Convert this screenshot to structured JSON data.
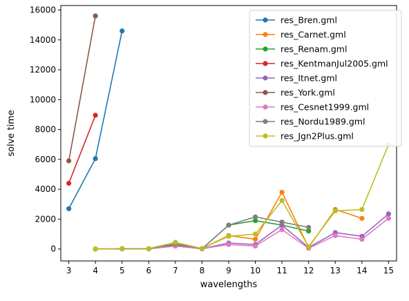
{
  "chart_data": {
    "type": "line",
    "xlabel": "wavelengths",
    "ylabel": "solve time",
    "xlim": [
      2.7,
      15.3
    ],
    "ylim": [
      -800,
      16300
    ],
    "xticks": [
      3,
      4,
      5,
      6,
      7,
      8,
      9,
      10,
      11,
      12,
      13,
      14,
      15
    ],
    "yticks": [
      0,
      2000,
      4000,
      6000,
      8000,
      10000,
      12000,
      14000,
      16000
    ],
    "grid": false,
    "legend_position": "top-right",
    "series": [
      {
        "name": "res_Bren.gml",
        "color": "#1f77b4",
        "x": [
          3,
          4,
          5
        ],
        "y": [
          2700,
          6050,
          14600
        ]
      },
      {
        "name": "res_Carnet.gml",
        "color": "#ff7f0e",
        "x": [
          4,
          5,
          6,
          7,
          8,
          9,
          10,
          11,
          12,
          13,
          14
        ],
        "y": [
          0,
          20,
          20,
          300,
          30,
          900,
          650,
          3800,
          100,
          2650,
          2050
        ]
      },
      {
        "name": "res_Renam.gml",
        "color": "#2ca02c",
        "x": [
          4,
          5,
          6,
          7,
          8,
          9,
          10,
          11,
          12
        ],
        "y": [
          0,
          20,
          20,
          250,
          20,
          1600,
          1900,
          1600,
          1200
        ]
      },
      {
        "name": "res_KentmanJul2005.gml",
        "color": "#d62728",
        "x": [
          3,
          4
        ],
        "y": [
          4400,
          8950
        ]
      },
      {
        "name": "res_Itnet.gml",
        "color": "#9467bd",
        "x": [
          4,
          5,
          6,
          7,
          8,
          9,
          10,
          11,
          12,
          13,
          14,
          15
        ],
        "y": [
          0,
          20,
          20,
          200,
          20,
          400,
          300,
          1600,
          100,
          1100,
          850,
          2350
        ]
      },
      {
        "name": "res_York.gml",
        "color": "#8c564b",
        "x": [
          3,
          4
        ],
        "y": [
          5900,
          15600
        ]
      },
      {
        "name": "res_Cesnet1999.gml",
        "color": "#e377c2",
        "x": [
          4,
          5,
          6,
          7,
          8,
          9,
          10,
          11,
          12,
          13,
          14,
          15
        ],
        "y": [
          0,
          20,
          20,
          200,
          20,
          300,
          200,
          1300,
          50,
          900,
          650,
          2050
        ]
      },
      {
        "name": "res_Nordu1989.gml",
        "color": "#7f7f7f",
        "x": [
          4,
          5,
          6,
          7,
          8,
          9,
          10,
          11,
          12
        ],
        "y": [
          0,
          20,
          20,
          350,
          20,
          1600,
          2150,
          1800,
          1450
        ]
      },
      {
        "name": "res_Jgn2Plus.gml",
        "color": "#bcbd22",
        "x": [
          4,
          5,
          6,
          7,
          8,
          9,
          10,
          11,
          12,
          13,
          14,
          15
        ],
        "y": [
          0,
          30,
          30,
          450,
          30,
          850,
          1000,
          3250,
          150,
          2550,
          2650,
          7000
        ]
      }
    ]
  }
}
